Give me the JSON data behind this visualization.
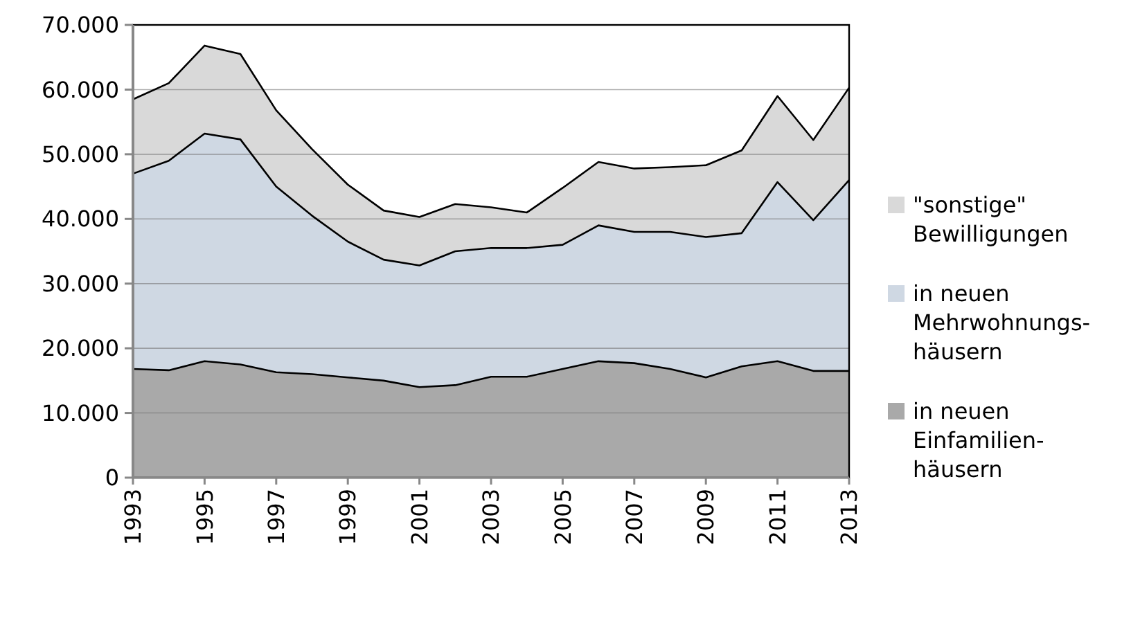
{
  "chart_data": {
    "type": "area",
    "stacked": true,
    "x": [
      1993,
      1994,
      1995,
      1996,
      1997,
      1998,
      1999,
      2000,
      2001,
      2002,
      2003,
      2004,
      2005,
      2006,
      2007,
      2008,
      2009,
      2010,
      2011,
      2012,
      2013
    ],
    "series": [
      {
        "name": "in neuen Einfamilien-häusern",
        "color": "#a9a9a9",
        "values": [
          16800,
          16600,
          18000,
          17500,
          16300,
          16000,
          15500,
          15000,
          14000,
          14300,
          15600,
          15600,
          16800,
          18000,
          17700,
          16800,
          15500,
          17200,
          18000,
          16500,
          16500
        ]
      },
      {
        "name": "in neuen Mehrwohnungs-häusern",
        "color": "#cfd8e3",
        "values": [
          30200,
          32400,
          35200,
          34800,
          28700,
          24500,
          21000,
          18700,
          18800,
          20700,
          19900,
          19900,
          19200,
          21000,
          20300,
          21200,
          21700,
          20600,
          27700,
          23300,
          29500
        ]
      },
      {
        "name": "\"sonstige\" Bewilligungen",
        "color": "#d9d9d9",
        "values": [
          11500,
          12000,
          13600,
          13200,
          11800,
          10300,
          8800,
          7600,
          7500,
          7300,
          6300,
          5500,
          8800,
          9800,
          9800,
          10000,
          11100,
          12800,
          13300,
          12400,
          14300
        ]
      }
    ],
    "xlim": [
      1993,
      2013
    ],
    "xticks": [
      1993,
      1995,
      1997,
      1999,
      2001,
      2003,
      2005,
      2007,
      2009,
      2011,
      2013
    ],
    "ylim": [
      0,
      70000
    ],
    "yticks": [
      {
        "value": 0,
        "label": "0"
      },
      {
        "value": 10000,
        "label": "10.000"
      },
      {
        "value": 20000,
        "label": "20.000"
      },
      {
        "value": 30000,
        "label": "30.000"
      },
      {
        "value": 40000,
        "label": "40.000"
      },
      {
        "value": 50000,
        "label": "50.000"
      },
      {
        "value": 60000,
        "label": "60.000"
      },
      {
        "value": 70000,
        "label": "70.000"
      }
    ],
    "grid": "y",
    "legend": "right"
  }
}
